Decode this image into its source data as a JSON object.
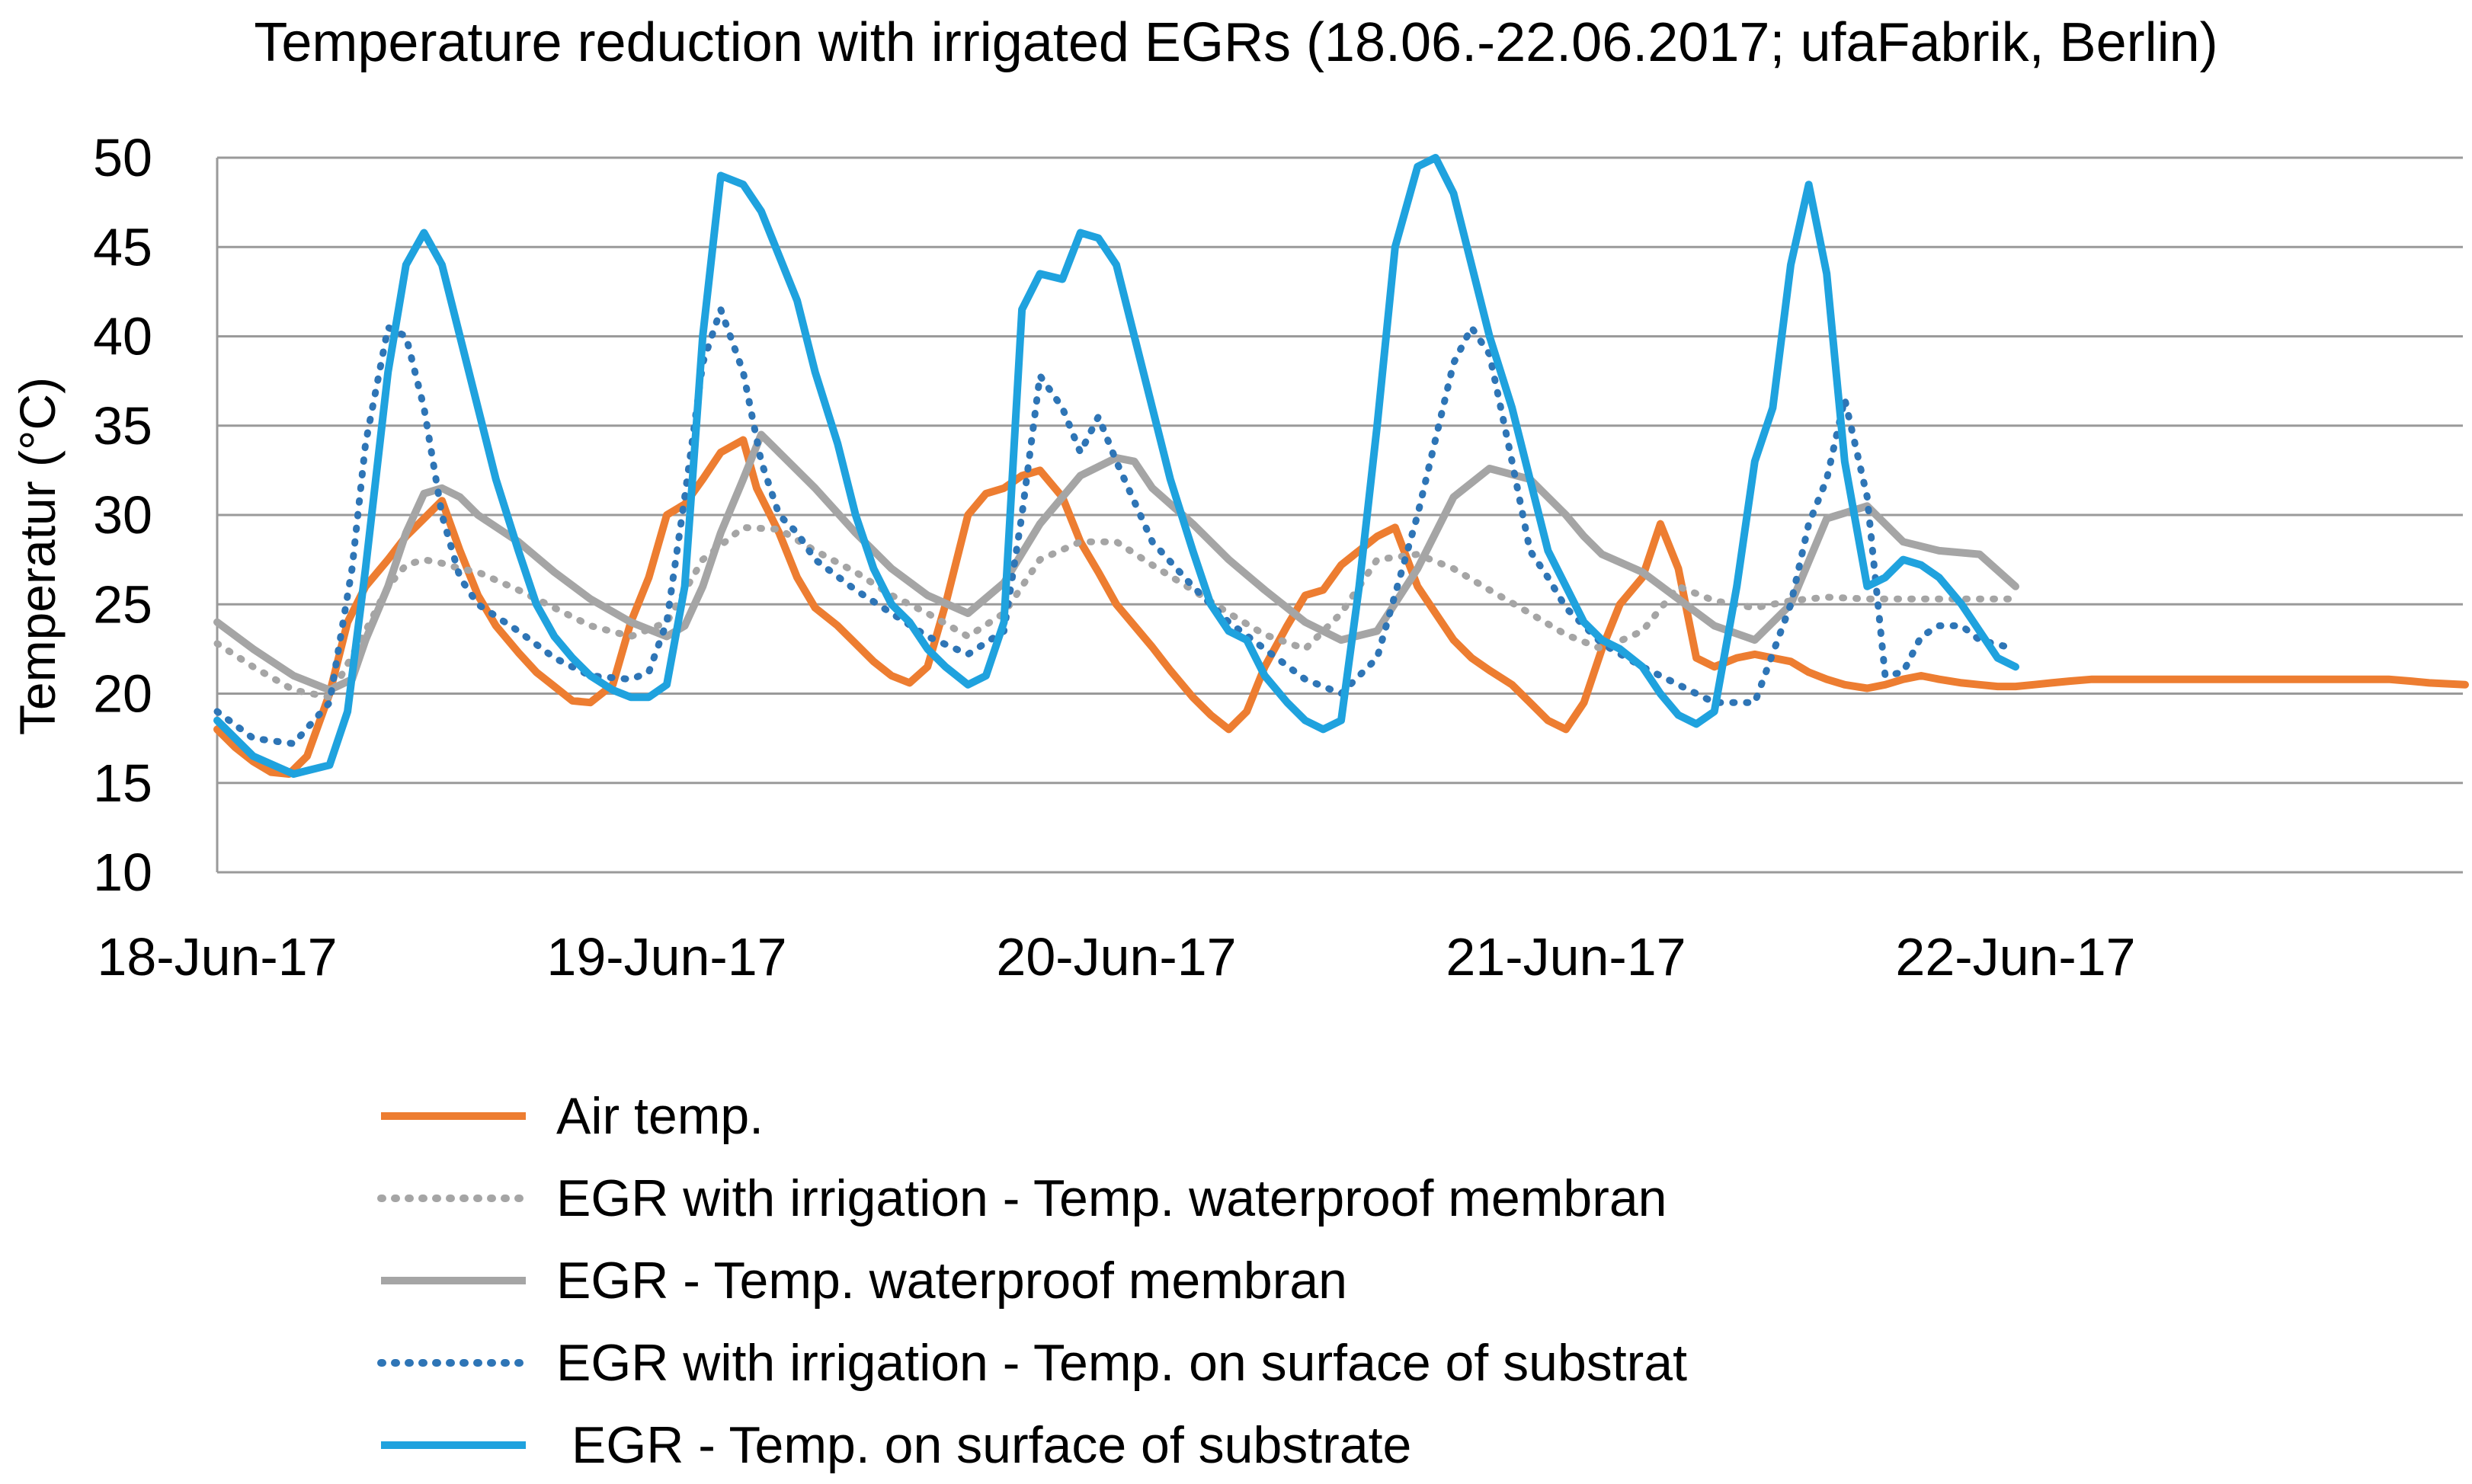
{
  "chart_data": {
    "type": "line",
    "title": "Temperature reduction with irrigated EGRs (18.06.-22.06.2017; ufaFabrik, Berlin)",
    "xlabel": "",
    "ylabel": "Temperatur (°C)",
    "ylim": [
      10,
      50
    ],
    "yticks": [
      10,
      15,
      20,
      25,
      30,
      35,
      40,
      45,
      50
    ],
    "x_unit": "days since 18-Jun-17 00:00",
    "xlim": [
      0,
      5
    ],
    "xtick_labels": [
      "18-Jun-17",
      "19-Jun-17",
      "20-Jun-17",
      "21-Jun-17",
      "22-Jun-17"
    ],
    "grid": "horizontal",
    "legend_position": "bottom",
    "series": [
      {
        "name": "Air temp.",
        "color": "#ED7D31",
        "style": "solid",
        "x": [
          0,
          0.04,
          0.08,
          0.12,
          0.16,
          0.2,
          0.25,
          0.29,
          0.33,
          0.38,
          0.42,
          0.46,
          0.5,
          0.54,
          0.58,
          0.62,
          0.67,
          0.71,
          0.75,
          0.79,
          0.83,
          0.88,
          0.92,
          0.96,
          1.0,
          1.04,
          1.08,
          1.12,
          1.17,
          1.2,
          1.25,
          1.29,
          1.33,
          1.38,
          1.42,
          1.46,
          1.5,
          1.54,
          1.58,
          1.62,
          1.67,
          1.71,
          1.75,
          1.79,
          1.83,
          1.88,
          1.92,
          1.96,
          2.0,
          2.04,
          2.08,
          2.12,
          2.17,
          2.21,
          2.25,
          2.29,
          2.33,
          2.38,
          2.42,
          2.46,
          2.5,
          2.54,
          2.58,
          2.62,
          2.67,
          2.71,
          2.75,
          2.79,
          2.83,
          2.88,
          2.92,
          2.96,
          3.0,
          3.04,
          3.08,
          3.12,
          3.17,
          3.21,
          3.25,
          3.29,
          3.33,
          3.38,
          3.42,
          3.46,
          3.5,
          3.54,
          3.58,
          3.62,
          3.67,
          3.71,
          3.75,
          3.79,
          3.83,
          3.88,
          3.92,
          3.96,
          4.0,
          4.04,
          4.08,
          4.12,
          4.17,
          4.21,
          4.25,
          4.29,
          4.33,
          4.38,
          4.42,
          4.46,
          4.5,
          4.54,
          4.58,
          4.62,
          4.67,
          4.71,
          4.75,
          4.79,
          4.83,
          4.88,
          4.92,
          5.0
        ],
        "values": [
          18,
          17,
          16.2,
          15.6,
          15.5,
          16.5,
          20,
          24,
          26,
          27.5,
          28.8,
          29.8,
          30.8,
          28,
          25.5,
          23.8,
          22.3,
          21.2,
          20.4,
          19.6,
          19.5,
          20.5,
          24,
          26.5,
          30,
          30.6,
          32,
          33.5,
          34.2,
          31.5,
          29,
          26.5,
          24.8,
          23.8,
          22.8,
          21.8,
          21,
          20.6,
          21.5,
          25,
          30,
          31.2,
          31.5,
          32.2,
          32.5,
          31,
          28.5,
          26.8,
          25,
          23.8,
          22.6,
          21.3,
          19.8,
          18.8,
          18,
          19,
          21.5,
          23.8,
          25.5,
          25.8,
          27.2,
          28,
          28.8,
          29.3,
          26,
          24.5,
          23,
          22,
          21.3,
          20.5,
          19.5,
          18.5,
          18,
          19.5,
          22.5,
          25,
          26.5,
          29.5,
          27,
          22,
          21.5,
          22,
          22.2,
          22,
          21.8,
          21.2,
          20.8,
          20.5,
          20.3,
          20.5,
          20.8,
          21,
          20.8,
          20.6,
          20.5,
          20.4,
          20.4,
          20.5,
          20.6,
          20.7,
          20.8,
          20.8,
          20.8,
          20.8,
          20.8,
          20.8,
          20.8,
          20.8,
          20.8,
          20.8,
          20.8,
          20.8,
          20.8,
          20.8,
          20.8,
          20.8,
          20.8,
          20.7,
          20.6,
          20.5
        ]
      },
      {
        "name": "EGR with irrigation - Temp. waterproof membran",
        "color": "#A5A5A5",
        "style": "dotted",
        "x": [
          0,
          0.08,
          0.17,
          0.25,
          0.33,
          0.38,
          0.42,
          0.46,
          0.5,
          0.54,
          0.58,
          0.67,
          0.75,
          0.83,
          0.92,
          1.0,
          1.08,
          1.17,
          1.25,
          1.33,
          1.42,
          1.5,
          1.58,
          1.67,
          1.75,
          1.83,
          1.92,
          2.0,
          2.08,
          2.17,
          2.25,
          2.33,
          2.42,
          2.5,
          2.58,
          2.67,
          2.75,
          2.83,
          2.92,
          3.0,
          3.08,
          3.17,
          3.25,
          3.33,
          3.42,
          3.5,
          3.58,
          3.67,
          3.75,
          3.83,
          3.92,
          4.0
        ],
        "values": [
          22.8,
          21.5,
          20.2,
          19.8,
          23.5,
          26,
          27.2,
          27.5,
          27.3,
          27,
          26.8,
          25.8,
          24.8,
          23.8,
          23.2,
          24,
          27.5,
          29.3,
          29.2,
          28,
          26.8,
          25.5,
          24.5,
          23.2,
          24.5,
          27.5,
          28.5,
          28.5,
          27.2,
          25.8,
          24.5,
          23.3,
          22.5,
          24.5,
          27.5,
          27.8,
          27,
          25.8,
          24.5,
          23.3,
          22.5,
          23.5,
          26,
          25.2,
          24.8,
          25.2,
          25.4,
          25.3,
          25.3,
          25.3,
          25.3,
          25.3
        ]
      },
      {
        "name": "EGR - Temp. waterproof membran",
        "color": "#A5A5A5",
        "style": "solid",
        "x": [
          0,
          0.08,
          0.17,
          0.25,
          0.3,
          0.33,
          0.38,
          0.42,
          0.46,
          0.5,
          0.54,
          0.58,
          0.67,
          0.75,
          0.83,
          0.92,
          1.0,
          1.04,
          1.08,
          1.12,
          1.17,
          1.21,
          1.25,
          1.33,
          1.42,
          1.5,
          1.58,
          1.67,
          1.75,
          1.83,
          1.92,
          2.0,
          2.04,
          2.08,
          2.17,
          2.25,
          2.33,
          2.42,
          2.5,
          2.58,
          2.67,
          2.75,
          2.83,
          2.92,
          3.0,
          3.04,
          3.08,
          3.17,
          3.25,
          3.33,
          3.42,
          3.5,
          3.58,
          3.67,
          3.75,
          3.83,
          3.92,
          4.0
        ],
        "values": [
          24,
          22.5,
          21,
          20.2,
          20.8,
          23,
          26,
          29,
          31.2,
          31.5,
          31,
          30,
          28.5,
          26.8,
          25.3,
          24,
          23.2,
          23.8,
          26,
          29,
          32,
          34.5,
          33.5,
          31.5,
          29,
          27,
          25.5,
          24.5,
          26.2,
          29.5,
          32.2,
          33.2,
          33,
          31.5,
          29.5,
          27.5,
          25.8,
          24,
          23,
          23.5,
          27,
          31,
          32.6,
          32,
          30,
          28.8,
          27.8,
          26.8,
          25.3,
          23.8,
          23,
          25,
          29.8,
          30.5,
          28.5,
          28,
          27.8,
          26
        ]
      },
      {
        "name": "EGR with irrigation - Temp. on surface of substrat",
        "color": "#2E75B6",
        "style": "dotted",
        "x": [
          0,
          0.08,
          0.17,
          0.25,
          0.3,
          0.33,
          0.38,
          0.42,
          0.46,
          0.5,
          0.54,
          0.58,
          0.67,
          0.75,
          0.83,
          0.92,
          0.96,
          1.0,
          1.04,
          1.08,
          1.12,
          1.17,
          1.21,
          1.25,
          1.29,
          1.33,
          1.42,
          1.5,
          1.58,
          1.67,
          1.75,
          1.79,
          1.83,
          1.88,
          1.92,
          1.96,
          2.0,
          2.08,
          2.17,
          2.25,
          2.33,
          2.42,
          2.5,
          2.58,
          2.67,
          2.75,
          2.79,
          2.83,
          2.88,
          2.92,
          2.96,
          3.0,
          3.08,
          3.17,
          3.25,
          3.33,
          3.42,
          3.5,
          3.54,
          3.58,
          3.62,
          3.67,
          3.71,
          3.75,
          3.79,
          3.83,
          3.88,
          3.92,
          4.0
        ],
        "values": [
          19,
          17.5,
          17.2,
          19.5,
          27,
          34,
          40.5,
          40,
          36,
          30,
          26.5,
          25,
          23.5,
          22,
          21,
          20.8,
          21.2,
          24,
          31,
          38.5,
          41.5,
          38,
          33,
          30,
          29,
          27.5,
          25.8,
          24.5,
          23.2,
          22.2,
          23.5,
          30,
          37.8,
          36,
          33.5,
          35.5,
          33,
          28.5,
          26,
          24,
          22.5,
          20.8,
          20,
          22,
          30,
          38.5,
          40.5,
          39,
          33,
          28,
          26.5,
          24.8,
          22.8,
          21.5,
          20.5,
          19.5,
          19.5,
          25,
          29.5,
          32,
          36.5,
          31,
          21,
          21.2,
          23.2,
          23.8,
          23.8,
          23,
          22.5
        ]
      },
      {
        "name": "EGR - Temp. on surface of substrate",
        "color": "#1FA2DE",
        "style": "solid",
        "x": [
          0,
          0.08,
          0.17,
          0.25,
          0.29,
          0.33,
          0.38,
          0.42,
          0.46,
          0.5,
          0.54,
          0.58,
          0.62,
          0.67,
          0.71,
          0.75,
          0.79,
          0.83,
          0.88,
          0.92,
          0.96,
          1.0,
          1.04,
          1.08,
          1.12,
          1.17,
          1.21,
          1.25,
          1.29,
          1.33,
          1.38,
          1.42,
          1.46,
          1.5,
          1.54,
          1.58,
          1.62,
          1.67,
          1.71,
          1.75,
          1.79,
          1.83,
          1.88,
          1.92,
          1.96,
          2.0,
          2.04,
          2.08,
          2.12,
          2.17,
          2.21,
          2.25,
          2.29,
          2.33,
          2.38,
          2.42,
          2.46,
          2.5,
          2.54,
          2.58,
          2.62,
          2.67,
          2.71,
          2.75,
          2.79,
          2.83,
          2.88,
          2.92,
          2.96,
          3.0,
          3.04,
          3.08,
          3.12,
          3.17,
          3.21,
          3.25,
          3.29,
          3.33,
          3.38,
          3.42,
          3.46,
          3.5,
          3.54,
          3.58,
          3.62,
          3.67,
          3.71,
          3.75,
          3.79,
          3.83,
          3.88,
          3.92,
          3.96,
          4.0
        ],
        "values": [
          18.5,
          16.5,
          15.5,
          16,
          19,
          27,
          38,
          44,
          45.8,
          44,
          40,
          36,
          32,
          28,
          25,
          23.2,
          22,
          21,
          20.2,
          19.8,
          19.8,
          20.5,
          26,
          40,
          49,
          48.5,
          47,
          44.5,
          42,
          38,
          34,
          30,
          27,
          25,
          24,
          22.5,
          21.5,
          20.5,
          21,
          24,
          41.5,
          43.5,
          43.2,
          45.8,
          45.5,
          44,
          40,
          36,
          32,
          28,
          25,
          23.5,
          23,
          21,
          19.5,
          18.5,
          18,
          18.5,
          26,
          35,
          45,
          49.5,
          50,
          48,
          44,
          40,
          36,
          32,
          28,
          26,
          24,
          23,
          22.5,
          21.5,
          20,
          18.8,
          18.3,
          19,
          26,
          33,
          36,
          44,
          48.5,
          43.5,
          33,
          26,
          26.5,
          27.5,
          27.2,
          26.5,
          25,
          23.5,
          22,
          21.5
        ]
      }
    ]
  }
}
